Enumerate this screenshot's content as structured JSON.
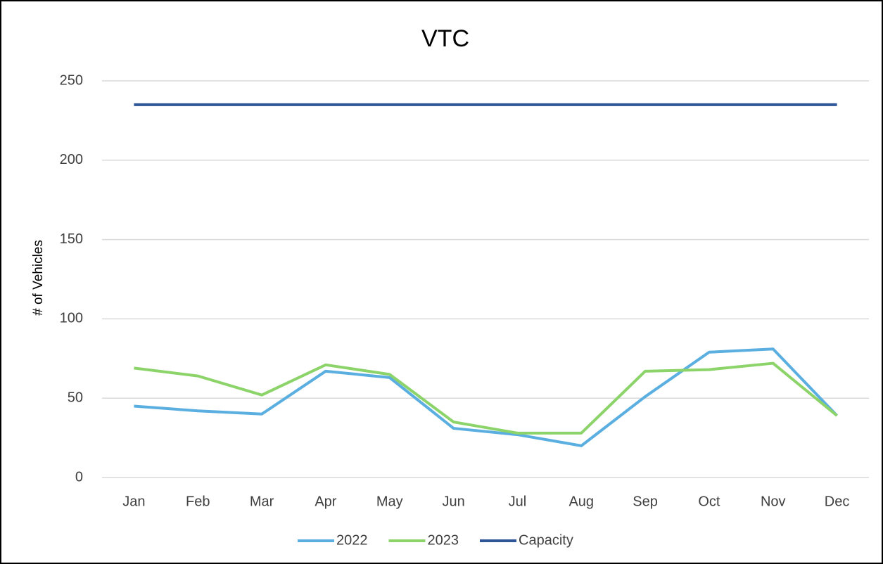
{
  "chart_data": {
    "type": "line",
    "title": "VTC",
    "y_label": "# of Vehicles",
    "categories": [
      "Jan",
      "Feb",
      "Mar",
      "Apr",
      "May",
      "Jun",
      "Jul",
      "Aug",
      "Sep",
      "Oct",
      "Nov",
      "Dec"
    ],
    "series": [
      {
        "name": "2022",
        "color": "#5aaee0",
        "values": [
          45,
          42,
          40,
          67,
          63,
          31,
          27,
          20,
          51,
          79,
          81,
          39
        ]
      },
      {
        "name": "2023",
        "color": "#8cd46a",
        "values": [
          69,
          64,
          52,
          71,
          65,
          35,
          28,
          28,
          67,
          68,
          72,
          39
        ]
      },
      {
        "name": "Capacity",
        "color": "#2e5596",
        "values": [
          235,
          235,
          235,
          235,
          235,
          235,
          235,
          235,
          235,
          235,
          235,
          235
        ]
      }
    ],
    "ylim": [
      0,
      250
    ],
    "yticks": [
      0,
      50,
      100,
      150,
      200,
      250
    ],
    "grid": true,
    "legend": "bottom"
  }
}
